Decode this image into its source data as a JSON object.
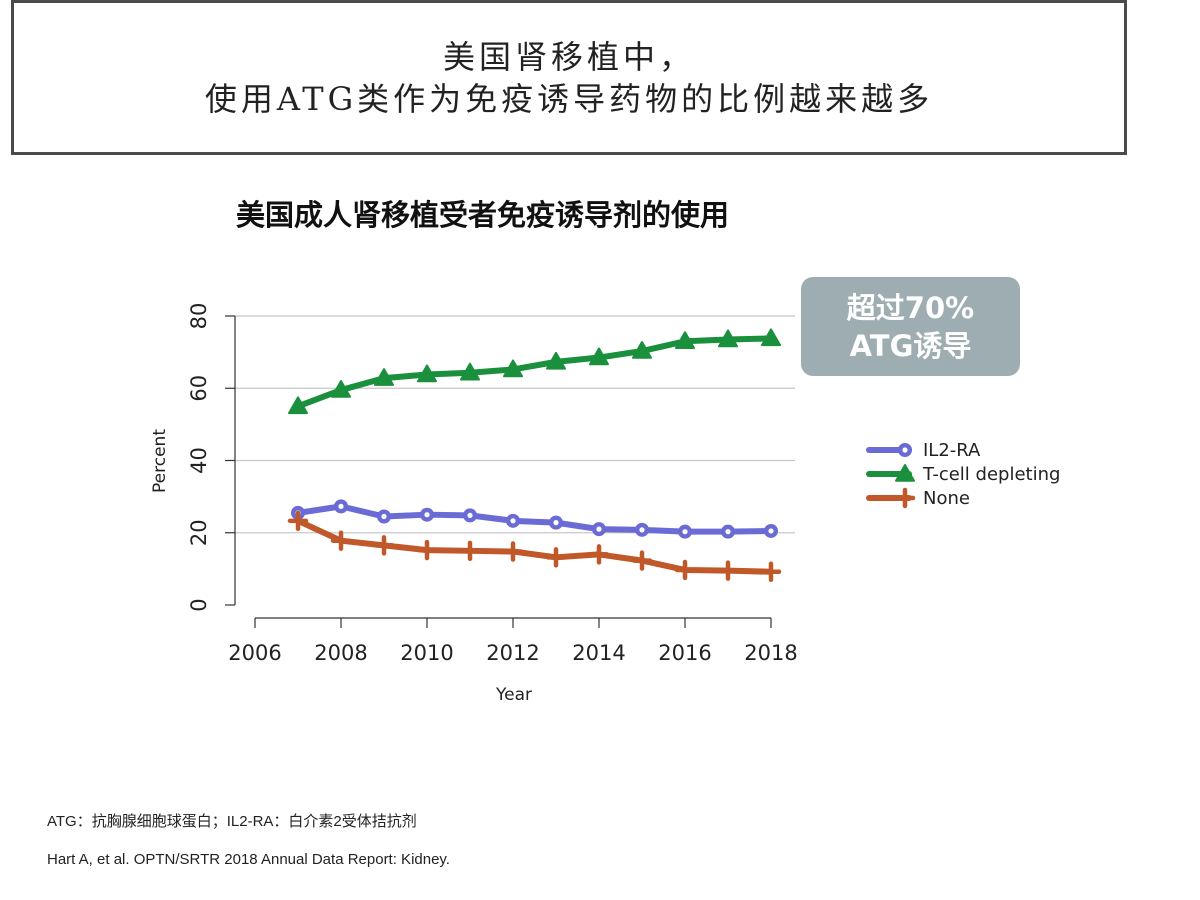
{
  "header": {
    "title_line1": "美国肾移植中，",
    "title_line2": "使用ATG类作为免疫诱导药物的比例越来越多"
  },
  "chart_title": "美国成人肾移植受者免疫诱导剂的使用",
  "callout": {
    "line1": "超过70%",
    "line2": "ATG诱导"
  },
  "footnotes": {
    "abbrev": "ATG：抗胸腺细胞球蛋白；IL2-RA：白介素2受体拮抗剂",
    "reference": "Hart A, et al. OPTN/SRTR 2018 Annual Data Report: Kidney."
  },
  "colors": {
    "il2ra": "#6b6bd6",
    "tcell": "#1a8f3c",
    "none": "#c0582a",
    "grid": "#c8c8c8",
    "callout_bg": "#9eadb2"
  },
  "chart_data": {
    "type": "line",
    "xlabel": "Year",
    "ylabel": "Percent",
    "xlim": [
      2006,
      2018
    ],
    "ylim": [
      0,
      80
    ],
    "x_ticks": [
      "2006",
      "2008",
      "2010",
      "2012",
      "2014",
      "2016",
      "2018"
    ],
    "y_ticks": [
      "0",
      "20",
      "40",
      "60",
      "80"
    ],
    "grid": true,
    "legend_position": "right",
    "x": [
      2007,
      2008,
      2009,
      2010,
      2011,
      2012,
      2013,
      2014,
      2015,
      2016,
      2017,
      2018
    ],
    "series": [
      {
        "name": "IL2-RA",
        "marker": "circle",
        "color": "#6b6bd6",
        "values": [
          25.5,
          27.3,
          24.5,
          25.0,
          24.8,
          23.3,
          22.8,
          21.0,
          20.8,
          20.3,
          20.3,
          20.5
        ]
      },
      {
        "name": "T-cell depleting",
        "marker": "triangle",
        "color": "#1a8f3c",
        "values": [
          55.0,
          59.5,
          62.8,
          63.8,
          64.3,
          65.2,
          67.3,
          68.5,
          70.3,
          73.0,
          73.5,
          73.8
        ]
      },
      {
        "name": "None",
        "marker": "plus",
        "color": "#c0582a",
        "values": [
          23.3,
          17.8,
          16.5,
          15.2,
          15.0,
          14.8,
          13.2,
          14.0,
          12.3,
          9.7,
          9.5,
          9.2
        ]
      }
    ]
  }
}
